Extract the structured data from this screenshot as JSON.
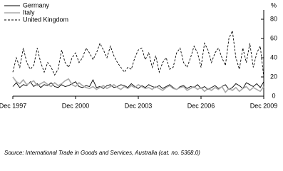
{
  "chart_data": {
    "type": "line",
    "y_label": "%",
    "source": "Source: International Trade in Goods and Services, Australia (cat. no. 5368.0)",
    "categories": [
      "Dec 1997",
      null,
      null,
      null,
      null,
      null,
      null,
      null,
      null,
      null,
      null,
      null,
      null,
      null,
      null,
      null,
      null,
      null,
      "Dec 2000",
      null,
      null,
      null,
      null,
      null,
      null,
      null,
      null,
      null,
      null,
      null,
      null,
      null,
      null,
      null,
      null,
      null,
      "Dec 2003",
      null,
      null,
      null,
      null,
      null,
      null,
      null,
      null,
      null,
      null,
      null,
      null,
      null,
      null,
      null,
      null,
      null,
      "Dec 2006",
      null,
      null,
      null,
      null,
      null,
      null,
      null,
      null,
      null,
      null,
      null,
      null,
      null,
      null,
      null,
      null,
      null,
      "Dec 2009"
    ],
    "ylim": [
      0,
      80
    ],
    "yticks": [
      0,
      20,
      40,
      60,
      80
    ],
    "grid": false,
    "legend": "top-left",
    "series": [
      {
        "name": "Germany",
        "color": "#000000",
        "style": "solid",
        "values": [
          10,
          14,
          9,
          12,
          11,
          15,
          10,
          13,
          9,
          12,
          11,
          14,
          10,
          9,
          12,
          10,
          11,
          13,
          15,
          10,
          9,
          11,
          10,
          17,
          9,
          10,
          8,
          11,
          12,
          9,
          10,
          12,
          11,
          9,
          13,
          10,
          8,
          11,
          9,
          12,
          10,
          9,
          11,
          8,
          10,
          12,
          9,
          7,
          10,
          11,
          8,
          10,
          9,
          12,
          8,
          10,
          7,
          9,
          11,
          8,
          10,
          12,
          7,
          9,
          13,
          11,
          8,
          14,
          12,
          10,
          13,
          9,
          15
        ]
      },
      {
        "name": "Italy",
        "color": "#aaaaaa",
        "style": "solid",
        "values": [
          20,
          15,
          13,
          17,
          12,
          14,
          16,
          11,
          13,
          15,
          12,
          10,
          14,
          11,
          13,
          16,
          18,
          12,
          10,
          14,
          11,
          9,
          8,
          10,
          7,
          9,
          11,
          8,
          10,
          12,
          9,
          7,
          10,
          8,
          11,
          9,
          12,
          10,
          8,
          9,
          7,
          10,
          8,
          6,
          9,
          11,
          8,
          7,
          9,
          10,
          6,
          8,
          10,
          7,
          9,
          5,
          8,
          6,
          9,
          7,
          10,
          4,
          8,
          6,
          9,
          5,
          8,
          10,
          6,
          9,
          7,
          5,
          10
        ]
      },
      {
        "name": "United Kingdom",
        "color": "#000000",
        "style": "dashed",
        "values": [
          25,
          40,
          30,
          50,
          35,
          28,
          32,
          50,
          35,
          25,
          35,
          30,
          22,
          28,
          48,
          35,
          30,
          40,
          45,
          35,
          40,
          50,
          45,
          38,
          45,
          55,
          48,
          40,
          52,
          42,
          35,
          30,
          25,
          30,
          28,
          40,
          48,
          50,
          38,
          45,
          30,
          42,
          25,
          35,
          40,
          28,
          30,
          45,
          50,
          35,
          30,
          40,
          52,
          45,
          30,
          55,
          48,
          35,
          45,
          50,
          40,
          32,
          60,
          68,
          40,
          28,
          50,
          35,
          55,
          30,
          45,
          52,
          20
        ]
      }
    ]
  }
}
